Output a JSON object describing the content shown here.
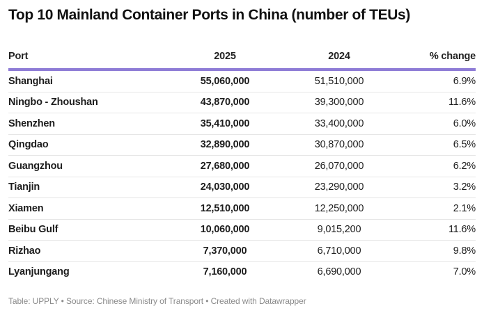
{
  "title": "Top 10 Mainland Container Ports in China (number of TEUs)",
  "footer": "Table: UPPLY • Source: Chinese Ministry of Transport • Created with Datawrapper",
  "colors": {
    "header_rule": "#8e7cd6"
  },
  "chart_data": {
    "type": "table",
    "title": "Top 10 Mainland Container Ports in China (number of TEUs)",
    "columns": [
      "Port",
      "2025",
      "2024",
      "% change"
    ],
    "rows": [
      [
        "Shanghai",
        "55,060,000",
        "51,510,000",
        "6.9%"
      ],
      [
        "Ningbo - Zhoushan",
        "43,870,000",
        "39,300,000",
        "11.6%"
      ],
      [
        "Shenzhen",
        "35,410,000",
        "33,400,000",
        "6.0%"
      ],
      [
        "Qingdao",
        "32,890,000",
        "30,870,000",
        "6.5%"
      ],
      [
        "Guangzhou",
        "27,680,000",
        "26,070,000",
        "6.2%"
      ],
      [
        "Tianjin",
        "24,030,000",
        "23,290,000",
        "3.2%"
      ],
      [
        "Xiamen",
        "12,510,000",
        "12,250,000",
        "2.1%"
      ],
      [
        "Beibu Gulf",
        "10,060,000",
        "9,015,200",
        "11.6%"
      ],
      [
        "Rizhao",
        "7,370,000",
        "6,710,000",
        "9.8%"
      ],
      [
        "Lyanjungang",
        "7,160,000",
        "6,690,000",
        "7.0%"
      ]
    ]
  }
}
